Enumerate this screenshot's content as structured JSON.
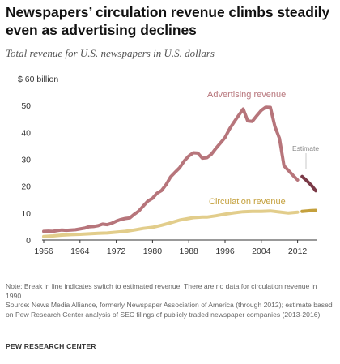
{
  "header": {
    "title": "Newspapers’ circulation revenue climbs steadily even as advertising declines",
    "subtitle": "Total revenue for U.S. newspapers in U.S. dollars"
  },
  "colors": {
    "advertising": "#b7757b",
    "advertising_estimate": "#7b3a47",
    "circulation": "#e2cd8b",
    "circulation_estimate": "#c4a03c",
    "axis": "#333333"
  },
  "chart_data": {
    "type": "line",
    "title": "",
    "xlabel": "",
    "ylabel": "",
    "xlim": [
      1956,
      2016
    ],
    "ylim": [
      0,
      60
    ],
    "grid": false,
    "x_ticks": [
      "1956",
      "1964",
      "1972",
      "1980",
      "1988",
      "1996",
      "2004",
      "2012"
    ],
    "y_ticks": [
      "0",
      "10",
      "20",
      "30",
      "40",
      "50",
      "$ 60 billion"
    ],
    "annotations": {
      "advertising": "Advertising revenue",
      "circulation": "Circulation revenue",
      "estimate": "Estimate"
    },
    "series": [
      {
        "name": "Advertising revenue",
        "x": [
          1956,
          1957,
          1958,
          1959,
          1960,
          1961,
          1962,
          1963,
          1964,
          1965,
          1966,
          1967,
          1968,
          1969,
          1970,
          1971,
          1972,
          1973,
          1974,
          1975,
          1976,
          1977,
          1978,
          1979,
          1980,
          1981,
          1982,
          1983,
          1984,
          1985,
          1986,
          1987,
          1988,
          1989,
          1990,
          1991,
          1992,
          1993,
          1994,
          1995,
          1996,
          1997,
          1998,
          1999,
          2000,
          2001,
          2002,
          2003,
          2004,
          2005,
          2006,
          2007,
          2008,
          2009,
          2010,
          2011,
          2012
        ],
        "values": [
          3.2,
          3.3,
          3.2,
          3.5,
          3.7,
          3.6,
          3.7,
          3.8,
          4.1,
          4.4,
          4.9,
          5.0,
          5.3,
          5.9,
          5.7,
          6.2,
          7.0,
          7.6,
          8.0,
          8.2,
          9.6,
          10.8,
          12.7,
          14.5,
          15.5,
          17.4,
          18.4,
          20.6,
          23.5,
          25.2,
          26.9,
          29.4,
          31.2,
          32.4,
          32.3,
          30.4,
          30.6,
          31.9,
          34.1,
          36.1,
          38.1,
          41.3,
          43.9,
          46.3,
          48.7,
          44.3,
          44.1,
          46.2,
          48.2,
          49.4,
          49.3,
          42.2,
          37.8,
          27.6,
          25.8,
          24.0,
          22.3
        ],
        "estimate": {
          "x": [
            2013,
            2014,
            2015,
            2016
          ],
          "values": [
            23.6,
            22.1,
            20.4,
            18.3
          ]
        }
      },
      {
        "name": "Circulation revenue",
        "x": [
          1956,
          1958,
          1960,
          1962,
          1964,
          1966,
          1968,
          1970,
          1972,
          1974,
          1976,
          1978,
          1980,
          1982,
          1984,
          1986,
          1988,
          1989,
          1991,
          1992,
          1994,
          1996,
          1998,
          2000,
          2002,
          2004,
          2006,
          2008,
          2010,
          2012
        ],
        "values": [
          1.3,
          1.5,
          1.8,
          2.0,
          2.1,
          2.3,
          2.5,
          2.6,
          2.9,
          3.2,
          3.7,
          4.3,
          4.7,
          5.5,
          6.4,
          7.4,
          8.0,
          8.3,
          8.5,
          8.5,
          9.0,
          9.6,
          10.1,
          10.5,
          10.6,
          10.6,
          10.8,
          10.4,
          10.0,
          10.3
        ],
        "estimate": {
          "x": [
            2013,
            2014,
            2015,
            2016
          ],
          "values": [
            10.6,
            10.8,
            10.9,
            11.0
          ]
        }
      }
    ]
  },
  "notes": {
    "note": "Note: Break in line indicates switch to estimated revenue. There are no data for circulation revenue in 1990.",
    "source": "Source: News Media Alliance, formerly Newspaper Association of America (through 2012); estimate based on Pew Research Center analysis of SEC filings of publicly traded newspaper companies (2013-2016).",
    "organization": "PEW RESEARCH CENTER"
  }
}
